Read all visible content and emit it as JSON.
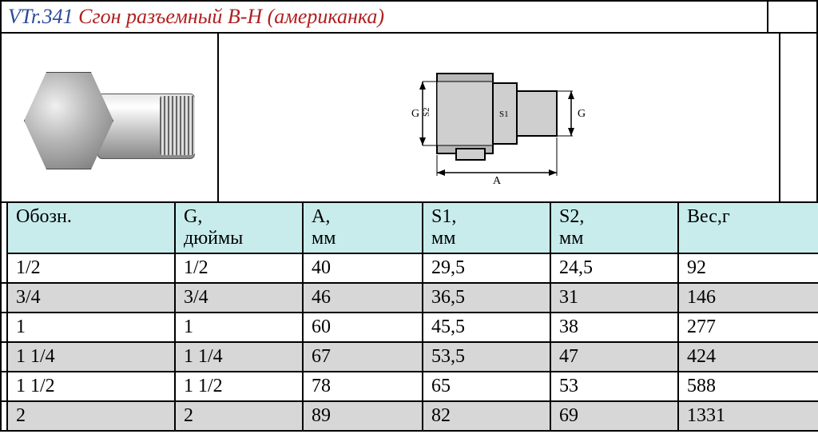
{
  "title": {
    "code": "VTr.341",
    "desc": "Сгон разъемный В-Н (американка)"
  },
  "colors": {
    "code": "#2a4a9a",
    "desc": "#b02020",
    "header_bg": "#c8ecec",
    "row_shade": "#d7d7d7",
    "border": "#000000",
    "background": "#ffffff"
  },
  "schematic": {
    "labels": {
      "G_left": "G",
      "G_right": "G",
      "S1": "S1",
      "S2": "S2",
      "A": "A"
    }
  },
  "table": {
    "columns": [
      {
        "key": "obozn",
        "label_l1": "Обозн.",
        "label_l2": ""
      },
      {
        "key": "G",
        "label_l1": "G,",
        "label_l2": "дюймы"
      },
      {
        "key": "A",
        "label_l1": "A,",
        "label_l2": "мм"
      },
      {
        "key": "S1",
        "label_l1": "S1,",
        "label_l2": "мм"
      },
      {
        "key": "S2",
        "label_l1": "S2,",
        "label_l2": "мм"
      },
      {
        "key": "W",
        "label_l1": "Вес,г",
        "label_l2": ""
      }
    ],
    "rows": [
      {
        "shaded": false,
        "cells": [
          "1/2",
          "1/2",
          "40",
          "29,5",
          "24,5",
          "92"
        ]
      },
      {
        "shaded": true,
        "cells": [
          "3/4",
          "3/4",
          "46",
          "36,5",
          "31",
          "146"
        ]
      },
      {
        "shaded": false,
        "cells": [
          "1",
          "1",
          "60",
          "45,5",
          "38",
          "277"
        ]
      },
      {
        "shaded": true,
        "cells": [
          "1 1/4",
          "1 1/4",
          "67",
          "53,5",
          "47",
          "424"
        ]
      },
      {
        "shaded": false,
        "cells": [
          "1 1/2",
          "1 1/2",
          "78",
          "65",
          "53",
          "588"
        ]
      },
      {
        "shaded": true,
        "cells": [
          "2",
          "2",
          "89",
          "82",
          "69",
          "1331"
        ]
      }
    ]
  }
}
